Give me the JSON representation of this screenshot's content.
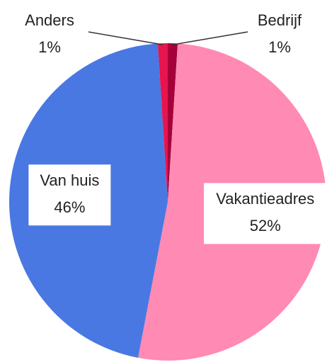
{
  "chart_data": {
    "type": "pie",
    "categories": [
      "Bedrijf",
      "Vakantieadres",
      "Van huis",
      "Anders"
    ],
    "values": [
      1,
      52,
      46,
      1
    ],
    "value_labels": [
      "1%",
      "52%",
      "46%",
      "1%"
    ],
    "colors": [
      "#a5003a",
      "#ff8ab4",
      "#4a78e2",
      "#e8144e"
    ]
  }
}
